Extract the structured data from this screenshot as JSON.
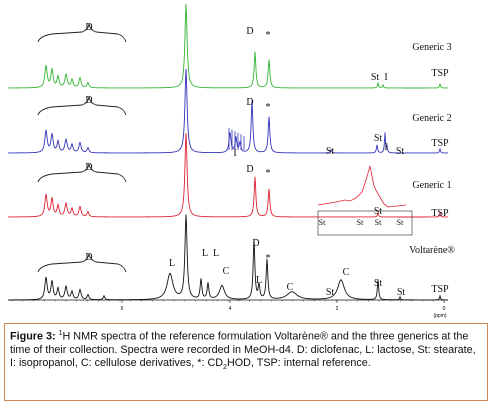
{
  "figure": {
    "caption_label": "Figure 3:",
    "caption_sup": "1",
    "caption_body_1": "H NMR spectra of the reference formulation Voltarène® and the three generics at the time of their collection. Spectra were recorded in MeOH-d4. D: diclofenac, L: lactose, St: stearate, I: isopropanol, C: cellulose derivatives, *: CD",
    "caption_sub": "2",
    "caption_body_2": "HOD, TSP: internal reference."
  },
  "chart_data": {
    "type": "line",
    "title": "",
    "xlabel": "(ppm)",
    "ylabel": "",
    "x_axis": {
      "reversed": true,
      "range": [
        8,
        0
      ],
      "tick_labels": [
        "6",
        "4",
        "2",
        "0"
      ],
      "unit_label": "(ppm)"
    },
    "series": [
      {
        "name": "Generic 3",
        "color": "#33b533",
        "labels": [
          {
            "text": "D",
            "type": "brace"
          },
          {
            "text": "D",
            "type": "peak"
          },
          {
            "text": "*",
            "type": "peak"
          },
          {
            "text": "St",
            "type": "peak"
          },
          {
            "text": "I",
            "type": "peak"
          },
          {
            "text": "TSP",
            "type": "peak"
          }
        ]
      },
      {
        "name": "Generic 2",
        "color": "#3333bb",
        "labels": [
          {
            "text": "D",
            "type": "brace"
          },
          {
            "text": "I",
            "type": "peak"
          },
          {
            "text": "D",
            "type": "peak"
          },
          {
            "text": "*",
            "type": "peak"
          },
          {
            "text": "St",
            "type": "peak"
          },
          {
            "text": "St",
            "type": "peak"
          },
          {
            "text": "I",
            "type": "peak"
          },
          {
            "text": "St",
            "type": "peak"
          },
          {
            "text": "TSP",
            "type": "peak"
          }
        ]
      },
      {
        "name": "Generic 1",
        "color": "#dd2233",
        "labels": [
          {
            "text": "D",
            "type": "brace"
          },
          {
            "text": "D",
            "type": "peak"
          },
          {
            "text": "*",
            "type": "peak"
          },
          {
            "text": "St",
            "type": "peak"
          },
          {
            "text": "St",
            "type": "inset"
          },
          {
            "text": "St",
            "type": "inset"
          },
          {
            "text": "St",
            "type": "inset"
          },
          {
            "text": "St",
            "type": "inset"
          },
          {
            "text": "TSP",
            "type": "peak"
          }
        ]
      },
      {
        "name": "Voltarène®",
        "color": "#111111",
        "labels": [
          {
            "text": "D",
            "type": "brace"
          },
          {
            "text": "L",
            "type": "peak"
          },
          {
            "text": "L",
            "type": "peak"
          },
          {
            "text": "L",
            "type": "peak"
          },
          {
            "text": "C",
            "type": "peak"
          },
          {
            "text": "D",
            "type": "peak"
          },
          {
            "text": "L",
            "type": "peak"
          },
          {
            "text": "*",
            "type": "peak"
          },
          {
            "text": "C",
            "type": "peak"
          },
          {
            "text": "C",
            "type": "peak"
          },
          {
            "text": "St",
            "type": "peak"
          },
          {
            "text": "St",
            "type": "peak"
          },
          {
            "text": "St",
            "type": "peak"
          },
          {
            "text": "TSP",
            "type": "peak"
          }
        ]
      }
    ]
  }
}
